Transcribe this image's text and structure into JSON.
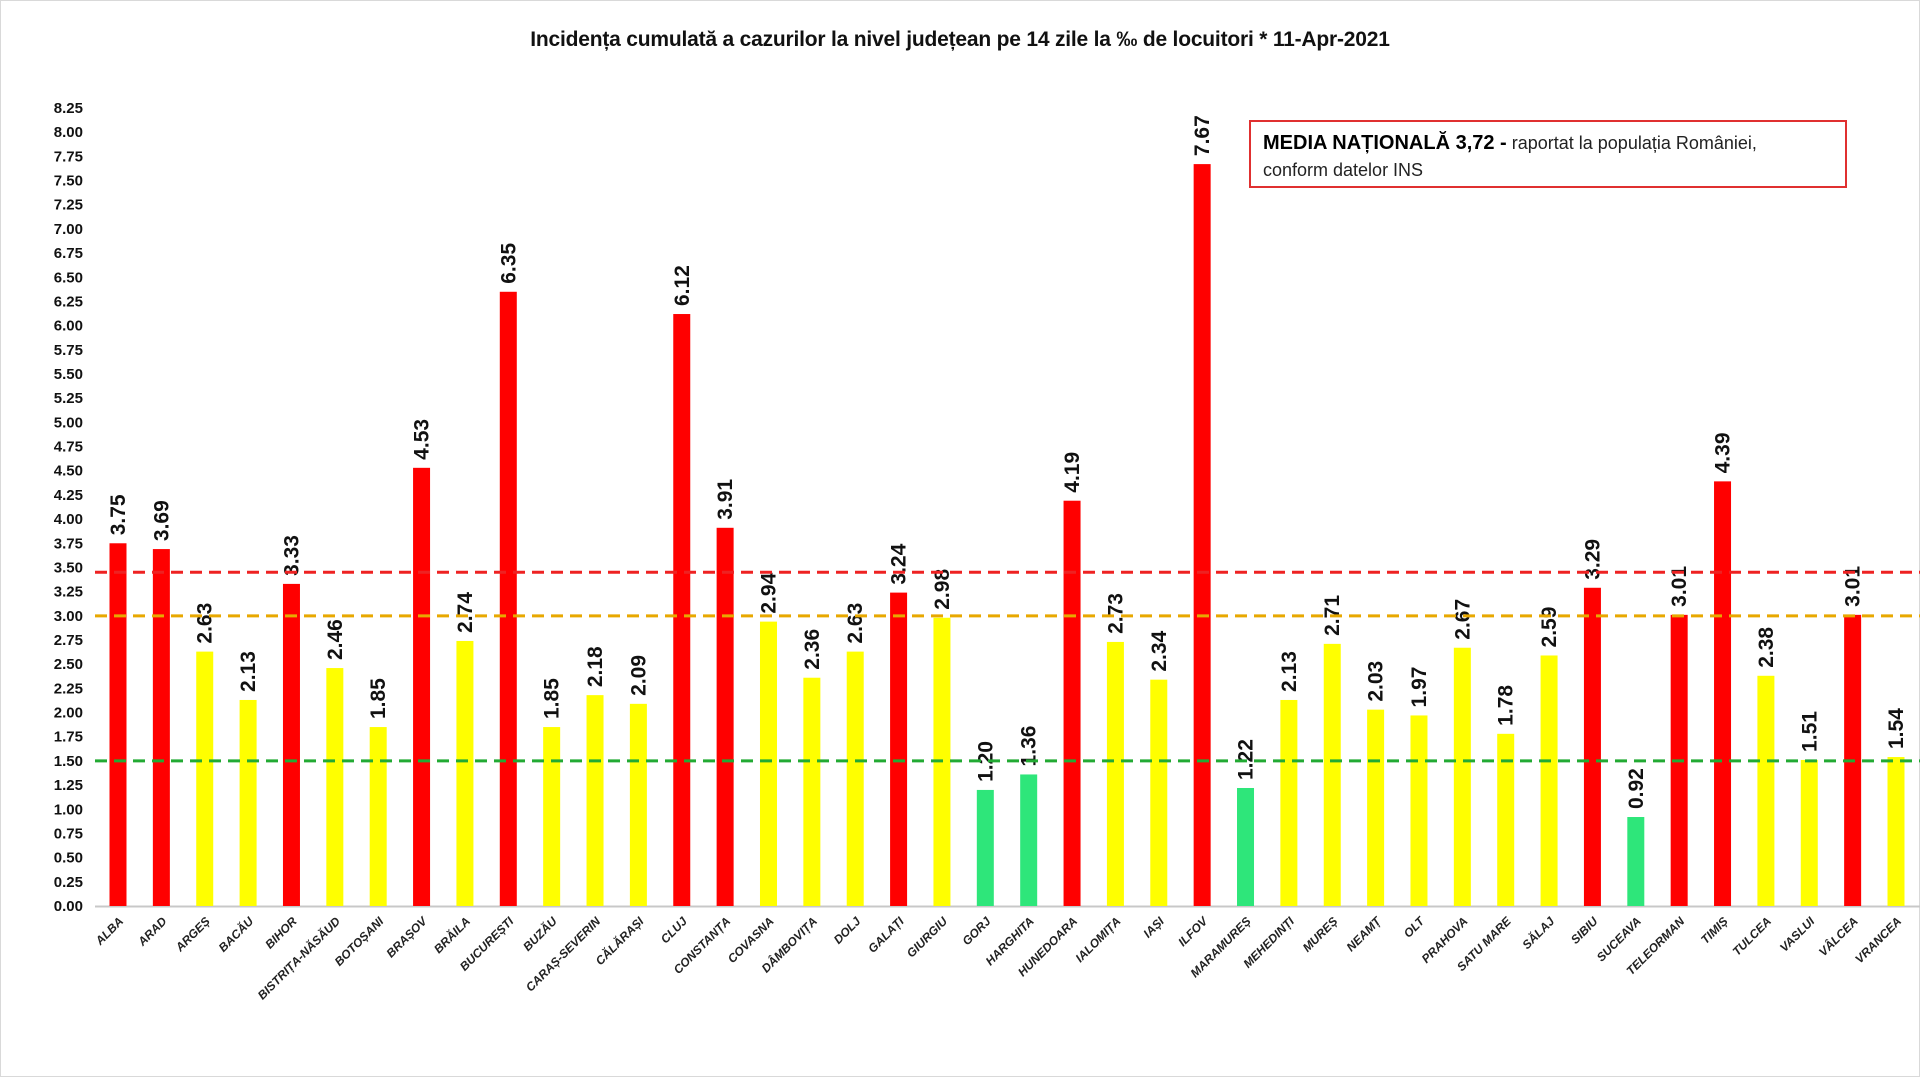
{
  "chart_data": {
    "type": "bar",
    "title": "Incidența cumulată a cazurilor la nivel județean pe 14 zile la ‰ de locuitori *   11-Apr-2021",
    "xlabel": "",
    "ylabel": "",
    "ylim": [
      0,
      8.25
    ],
    "ytick_step": 0.25,
    "grid": false,
    "categories": [
      "ALBA",
      "ARAD",
      "ARGEȘ",
      "BACĂU",
      "BIHOR",
      "BISTRIȚA-NĂSĂUD",
      "BOTOȘANI",
      "BRAȘOV",
      "BRĂILA",
      "BUCUREȘTI",
      "BUZĂU",
      "CARAȘ-SEVERIN",
      "CĂLĂRAȘI",
      "CLUJ",
      "CONSTANȚA",
      "COVASNA",
      "DÂMBOVIȚA",
      "DOLJ",
      "GALAȚI",
      "GIURGIU",
      "GORJ",
      "HARGHITA",
      "HUNEDOARA",
      "IALOMIȚA",
      "IAȘI",
      "ILFOV",
      "MARAMUREȘ",
      "MEHEDINȚI",
      "MUREȘ",
      "NEAMȚ",
      "OLT",
      "PRAHOVA",
      "SATU MARE",
      "SĂLAJ",
      "SIBIU",
      "SUCEAVA",
      "TELEORMAN",
      "TIMIȘ",
      "TULCEA",
      "VASLUI",
      "VÂLCEA",
      "VRANCEA"
    ],
    "values": [
      3.75,
      3.69,
      2.63,
      2.13,
      3.33,
      2.46,
      1.85,
      4.53,
      2.74,
      6.35,
      1.85,
      2.18,
      2.09,
      6.12,
      3.91,
      2.94,
      2.36,
      2.63,
      3.24,
      2.98,
      1.2,
      1.36,
      4.19,
      2.73,
      2.34,
      7.67,
      1.22,
      2.13,
      2.71,
      2.03,
      1.97,
      2.67,
      1.78,
      2.59,
      3.29,
      0.92,
      3.01,
      4.39,
      2.38,
      1.51,
      3.01,
      1.54
    ],
    "bar_colors": {
      "high": "#ff0000",
      "medium": "#ffff00",
      "low": "#2ee67a"
    },
    "color_thresholds": [
      1.5,
      3.0
    ],
    "reference_lines": [
      {
        "value": 3.45,
        "color": "#ee2222",
        "style": "dashed"
      },
      {
        "value": 3.0,
        "color": "#e8a800",
        "style": "dashed"
      },
      {
        "value": 1.5,
        "color": "#22aa33",
        "style": "dashed"
      }
    ],
    "annotation": {
      "bold": "MEDIA NAȚIONALĂ  3,72 -",
      "text": " raportat la populația României,",
      "line2": "conform datelor INS"
    }
  }
}
